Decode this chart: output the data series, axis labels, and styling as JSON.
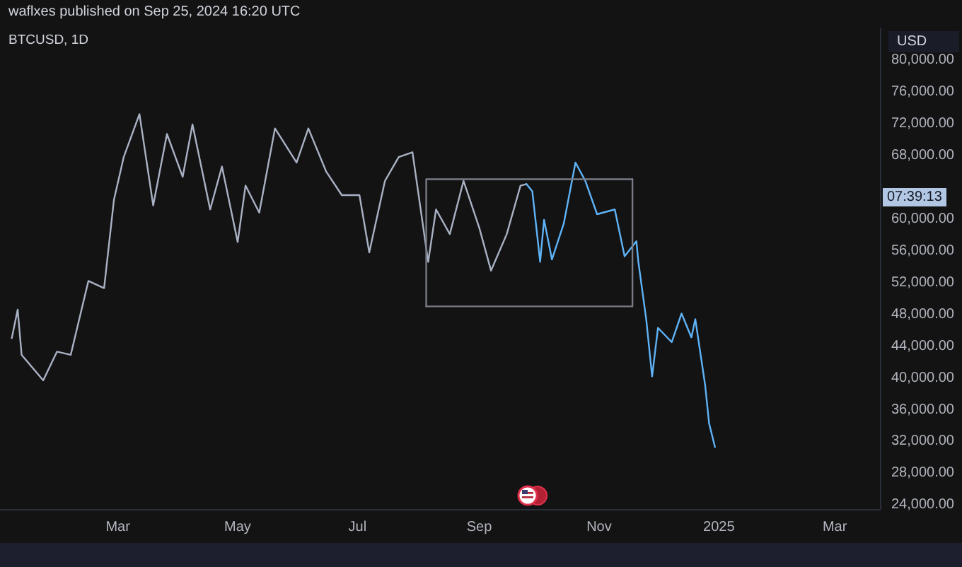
{
  "chart_data": {
    "type": "line",
    "title": "BTCUSD, 1D",
    "ylabel": "USD",
    "annotations": [
      "waflxes published on Sep 25, 2024 16:20 UTC",
      "07:39:13"
    ],
    "xlim": [
      "2024-01-01",
      "2025-03-24"
    ],
    "ylim": [
      23500,
      84000
    ],
    "xticks": [
      {
        "value": "2024-03-01",
        "label": "Mar"
      },
      {
        "value": "2024-05-01",
        "label": "May"
      },
      {
        "value": "2024-07-01",
        "label": "Jul"
      },
      {
        "value": "2024-09-01",
        "label": "Sep"
      },
      {
        "value": "2024-11-01",
        "label": "Nov"
      },
      {
        "value": "2025-01-01",
        "label": "2025"
      },
      {
        "value": "2025-03-01",
        "label": "Mar"
      }
    ],
    "yticks": [
      {
        "value": 24000,
        "label": "24,000.00"
      },
      {
        "value": 28000,
        "label": "28,000.00"
      },
      {
        "value": 32000,
        "label": "32,000.00"
      },
      {
        "value": 36000,
        "label": "36,000.00"
      },
      {
        "value": 40000,
        "label": "40,000.00"
      },
      {
        "value": 44000,
        "label": "44,000.00"
      },
      {
        "value": 48000,
        "label": "48,000.00"
      },
      {
        "value": 52000,
        "label": "52,000.00"
      },
      {
        "value": 56000,
        "label": "56,000.00"
      },
      {
        "value": 60000,
        "label": "60,000.00"
      },
      {
        "value": 68000,
        "label": "68,000.00"
      },
      {
        "value": 72000,
        "label": "72,000.00"
      },
      {
        "value": 76000,
        "label": "76,000.00"
      },
      {
        "value": 80000,
        "label": "80,000.00"
      }
    ],
    "marker": "none",
    "line_style": "solid",
    "series": [
      {
        "color": "#a9b1c4",
        "x": [
          "2024-01-07",
          "2024-01-10",
          "2024-01-12",
          "2024-01-23",
          "2024-01-30",
          "2024-02-06",
          "2024-02-15",
          "2024-02-23",
          "2024-02-28",
          "2024-03-04",
          "2024-03-12",
          "2024-03-19",
          "2024-03-26",
          "2024-04-03",
          "2024-04-08",
          "2024-04-17",
          "2024-04-23",
          "2024-05-01",
          "2024-05-05",
          "2024-05-12",
          "2024-05-20",
          "2024-05-31",
          "2024-06-06",
          "2024-06-15",
          "2024-06-23",
          "2024-07-02",
          "2024-07-07",
          "2024-07-15",
          "2024-07-22",
          "2024-07-29",
          "2024-08-06",
          "2024-08-10",
          "2024-08-17",
          "2024-08-24",
          "2024-09-01",
          "2024-09-07",
          "2024-09-15",
          "2024-09-22",
          "2024-09-25"
        ],
        "values": [
          45000,
          48600,
          42900,
          39700,
          43300,
          42900,
          52200,
          51300,
          62400,
          67800,
          73200,
          61700,
          70700,
          65300,
          71900,
          61200,
          66600,
          57100,
          64200,
          60800,
          71400,
          67100,
          71400,
          66000,
          63000,
          63000,
          55800,
          64800,
          67800,
          68400,
          54600,
          61200,
          58100,
          64800,
          58900,
          53500,
          58100,
          64200,
          64400
        ]
      },
      {
        "color": "#5fb3f7",
        "x": [
          "2024-09-25",
          "2024-09-28",
          "2024-10-02",
          "2024-10-04",
          "2024-10-08",
          "2024-10-14",
          "2024-10-20",
          "2024-10-25",
          "2024-10-31",
          "2024-11-09",
          "2024-11-14",
          "2024-11-20",
          "2024-11-21",
          "2024-11-25",
          "2024-11-28",
          "2024-12-01",
          "2024-12-08",
          "2024-12-13",
          "2024-12-18",
          "2024-12-20",
          "2024-12-25",
          "2024-12-27",
          "2024-12-30"
        ],
        "values": [
          64400,
          63500,
          54600,
          59900,
          54900,
          59400,
          67100,
          64800,
          60600,
          61200,
          55300,
          57200,
          54600,
          47400,
          40200,
          46300,
          44500,
          48100,
          45100,
          47400,
          39100,
          34300,
          31300
        ]
      },
      {
        "color": "#787b86",
        "x": [
          "2024-08-05",
          "2024-08-05",
          "2024-11-18"
        ],
        "values": [
          49000,
          65000,
          65000
        ]
      },
      {
        "color": "#787b86",
        "x": [
          "2024-08-05",
          "2024-11-18",
          "2024-11-18"
        ],
        "values": [
          49000,
          49000,
          65000
        ]
      }
    ]
  }
}
